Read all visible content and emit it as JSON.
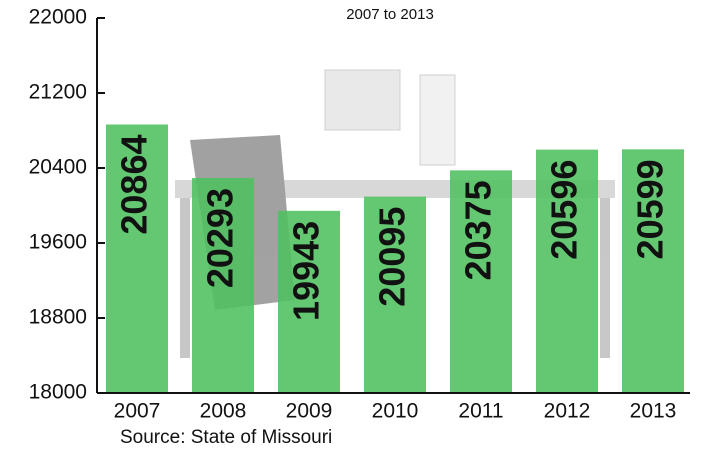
{
  "chart_data": {
    "type": "bar",
    "subtitle": "2007 to 2013",
    "source": "Source: State of Missouri",
    "categories": [
      "2007",
      "2008",
      "2009",
      "2010",
      "2011",
      "2012",
      "2013"
    ],
    "values": [
      20864,
      20293,
      19943,
      20095,
      20375,
      20596,
      20599
    ],
    "color": "#4fbf5e",
    "ylim": [
      18000,
      22000
    ],
    "yticks": [
      18000,
      18800,
      19600,
      20400,
      21200,
      22000
    ]
  }
}
